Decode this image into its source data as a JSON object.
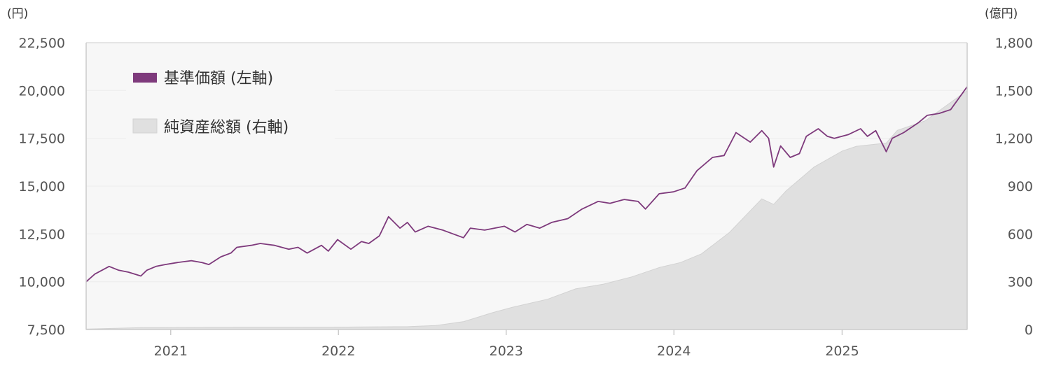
{
  "colors": {
    "nav_line": "#7e3a7c",
    "aum_fill": "#e0e0e0",
    "aum_edge": "#d2d2d2",
    "grid": "#eeeeee",
    "axis": "#cccccc",
    "plot_bg": "#f7f7f7"
  },
  "chart_data": {
    "type": "line",
    "left_axis": {
      "unit": "(円)",
      "range": [
        7500,
        22500
      ],
      "ticks": [
        "7,500",
        "10,000",
        "12,500",
        "15,000",
        "17,500",
        "20,000",
        "22,500"
      ]
    },
    "right_axis": {
      "unit": "(億円)",
      "range": [
        0,
        1800
      ],
      "ticks": [
        "0",
        "300",
        "600",
        "900",
        "1,200",
        "1,500",
        "1,800"
      ]
    },
    "x_axis": {
      "range": [
        "2020-07-01",
        "2025-09-30"
      ],
      "ticks": [
        {
          "date": "2021-01-01",
          "label": "2021"
        },
        {
          "date": "2022-01-01",
          "label": "2022"
        },
        {
          "date": "2023-01-01",
          "label": "2023"
        },
        {
          "date": "2024-01-01",
          "label": "2024"
        },
        {
          "date": "2025-01-01",
          "label": "2025"
        }
      ]
    },
    "grid": true,
    "legend_position": "top-left",
    "series": [
      {
        "name": "基準価額 (左軸)",
        "axis": "left",
        "type": "line",
        "x": [
          "2020-07-01",
          "2020-07-20",
          "2020-08-20",
          "2020-09-10",
          "2020-10-01",
          "2020-10-28",
          "2020-11-10",
          "2020-11-30",
          "2020-12-20",
          "2021-01-15",
          "2021-02-15",
          "2021-03-10",
          "2021-03-25",
          "2021-04-20",
          "2021-05-12",
          "2021-05-25",
          "2021-06-25",
          "2021-07-15",
          "2021-08-15",
          "2021-09-15",
          "2021-10-05",
          "2021-10-25",
          "2021-11-25",
          "2021-12-10",
          "2021-12-30",
          "2022-01-28",
          "2022-02-20",
          "2022-03-08",
          "2022-03-31",
          "2022-04-20",
          "2022-05-15",
          "2022-05-31",
          "2022-06-17",
          "2022-07-15",
          "2022-08-16",
          "2022-09-30",
          "2022-10-15",
          "2022-11-15",
          "2022-12-28",
          "2023-01-20",
          "2023-02-15",
          "2023-03-15",
          "2023-04-10",
          "2023-05-15",
          "2023-06-15",
          "2023-07-20",
          "2023-08-15",
          "2023-09-15",
          "2023-10-15",
          "2023-10-31",
          "2023-11-30",
          "2023-12-31",
          "2024-01-25",
          "2024-02-20",
          "2024-03-25",
          "2024-04-19",
          "2024-05-15",
          "2024-06-15",
          "2024-07-10",
          "2024-07-25",
          "2024-08-05",
          "2024-08-20",
          "2024-09-10",
          "2024-09-30",
          "2024-10-15",
          "2024-11-10",
          "2024-11-30",
          "2024-12-15",
          "2025-01-15",
          "2025-02-10",
          "2025-02-25",
          "2025-03-15",
          "2025-04-07",
          "2025-04-20",
          "2025-05-15",
          "2025-06-15",
          "2025-07-05",
          "2025-07-31",
          "2025-08-25",
          "2025-09-30"
        ],
        "y": [
          10000,
          10400,
          10800,
          10600,
          10500,
          10300,
          10600,
          10800,
          10900,
          11000,
          11100,
          11000,
          10900,
          11300,
          11500,
          11800,
          11900,
          12000,
          11900,
          11700,
          11800,
          11500,
          11900,
          11600,
          12200,
          11700,
          12100,
          12000,
          12400,
          13400,
          12800,
          13100,
          12600,
          12900,
          12700,
          12300,
          12800,
          12700,
          12900,
          12600,
          13000,
          12800,
          13100,
          13300,
          13800,
          14200,
          14100,
          14300,
          14200,
          13800,
          14600,
          14700,
          14900,
          15800,
          16500,
          16600,
          17800,
          17300,
          17900,
          17500,
          16000,
          17100,
          16500,
          16700,
          17600,
          18000,
          17600,
          17500,
          17700,
          18000,
          17600,
          17900,
          16800,
          17500,
          17800,
          18300,
          18700,
          18800,
          19000,
          20200
        ]
      },
      {
        "name": "純資産総額 (右軸)",
        "axis": "right",
        "type": "area",
        "x": [
          "2020-07-01",
          "2020-11-01",
          "2021-06-01",
          "2022-01-01",
          "2022-06-01",
          "2022-08-01",
          "2022-10-01",
          "2022-12-01",
          "2023-01-15",
          "2023-04-01",
          "2023-06-01",
          "2023-08-01",
          "2023-10-01",
          "2023-12-01",
          "2024-01-15",
          "2024-03-01",
          "2024-05-01",
          "2024-07-10",
          "2024-08-05",
          "2024-09-01",
          "2024-11-01",
          "2025-01-01",
          "2025-02-01",
          "2025-04-07",
          "2025-05-01",
          "2025-07-01",
          "2025-09-30"
        ],
        "y": [
          3,
          12,
          14,
          15,
          18,
          25,
          50,
          105,
          140,
          190,
          255,
          285,
          330,
          390,
          420,
          475,
          610,
          820,
          785,
          870,
          1020,
          1120,
          1150,
          1170,
          1250,
          1310,
          1500
        ]
      }
    ]
  }
}
